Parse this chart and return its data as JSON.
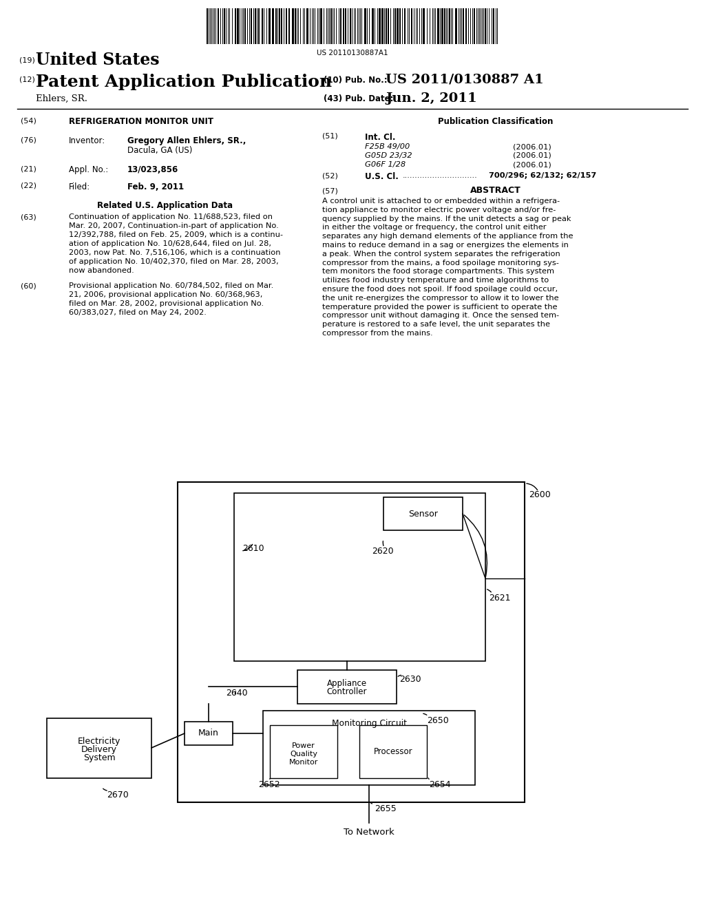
{
  "bg_color": "#ffffff",
  "barcode_text": "US 20110130887A1",
  "header_line1_num": "(19)",
  "header_line1_text": "United States",
  "header_line2_num": "(12)",
  "header_line2_text": "Patent Application Publication",
  "header_pub_num_label": "(10) Pub. No.:",
  "header_pub_num_value": "US 2011/0130887 A1",
  "header_author": "Ehlers, SR.",
  "header_date_label": "(43) Pub. Date:",
  "header_date_value": "Jun. 2, 2011",
  "field54_num": "(54)",
  "field54_text": "REFRIGERATION MONITOR UNIT",
  "field76_num": "(76)",
  "field76_label": "Inventor:",
  "field76_value_1": "Gregory Allen Ehlers, SR.,",
  "field76_value_2": "Dacula, GA (US)",
  "field21_num": "(21)",
  "field21_label": "Appl. No.:",
  "field21_value": "13/023,856",
  "field22_num": "(22)",
  "field22_label": "Filed:",
  "field22_value": "Feb. 9, 2011",
  "related_heading": "Related U.S. Application Data",
  "field63_num": "(63)",
  "field63_line1": "Continuation of application No. 11/688,523, filed on",
  "field63_line2": "Mar. 20, 2007, Continuation-in-part of application No.",
  "field63_line3": "12/392,788, filed on Feb. 25, 2009, which is a continu-",
  "field63_line4": "ation of application No. 10/628,644, filed on Jul. 28,",
  "field63_line5": "2003, now Pat. No. 7,516,106, which is a continuation",
  "field63_line6": "of application No. 10/402,370, filed on Mar. 28, 2003,",
  "field63_line7": "now abandoned.",
  "field60_num": "(60)",
  "field60_line1": "Provisional application No. 60/784,502, filed on Mar.",
  "field60_line2": "21, 2006, provisional application No. 60/368,963,",
  "field60_line3": "filed on Mar. 28, 2002, provisional application No.",
  "field60_line4": "60/383,027, filed on May 24, 2002.",
  "pub_class_heading": "Publication Classification",
  "field51_num": "(51)",
  "field51_label": "Int. Cl.",
  "field51_rows": [
    [
      "F25B 49/00",
      "(2006.01)"
    ],
    [
      "G05D 23/32",
      "(2006.01)"
    ],
    [
      "G06F 1/28",
      "(2006.01)"
    ]
  ],
  "field52_num": "(52)",
  "field52_label": "U.S. Cl.",
  "field52_dots": "..............................",
  "field52_value": "700/296; 62/132; 62/157",
  "field57_num": "(57)",
  "field57_label": "ABSTRACT",
  "abstract_line01": "A control unit is attached to or embedded within a refrigera-",
  "abstract_line02": "tion appliance to monitor electric power voltage and/or fre-",
  "abstract_line03": "quency supplied by the mains. If the unit detects a sag or peak",
  "abstract_line04": "in either the voltage or frequency, the control unit either",
  "abstract_line05": "separates any high demand elements of the appliance from the",
  "abstract_line06": "mains to reduce demand in a sag or energizes the elements in",
  "abstract_line07": "a peak. When the control system separates the refrigeration",
  "abstract_line08": "compressor from the mains, a food spoilage monitoring sys-",
  "abstract_line09": "tem monitors the food storage compartments. This system",
  "abstract_line10": "utilizes food industry temperature and time algorithms to",
  "abstract_line11": "ensure the food does not spoil. If food spoilage could occur,",
  "abstract_line12": "the unit re-energizes the compressor to allow it to lower the",
  "abstract_line13": "temperature provided the power is sufficient to operate the",
  "abstract_line14": "compressor unit without damaging it. Once the sensed tem-",
  "abstract_line15": "perature is restored to a safe level, the unit separates the",
  "abstract_line16": "compressor from the mains.",
  "diag_label_2600": "2600",
  "diag_label_2610": "2610",
  "diag_label_2620": "2620",
  "diag_label_2621": "2621",
  "diag_label_2630": "2630",
  "diag_label_2640": "2640",
  "diag_label_2650": "2650",
  "diag_label_2652": "2652",
  "diag_label_2654": "2654",
  "diag_label_2655": "2655",
  "diag_label_2670": "2670",
  "diag_network": "To Network",
  "diag_sensor": "Sensor",
  "diag_appliance": "Appliance\nController",
  "diag_monitoring": "Monitoring Circuit",
  "diag_power_quality": "Power\nQuality\nMonitor",
  "diag_processor": "Processor",
  "diag_main": "Main",
  "diag_electricity": "Electricity\nDelivery\nSystem"
}
